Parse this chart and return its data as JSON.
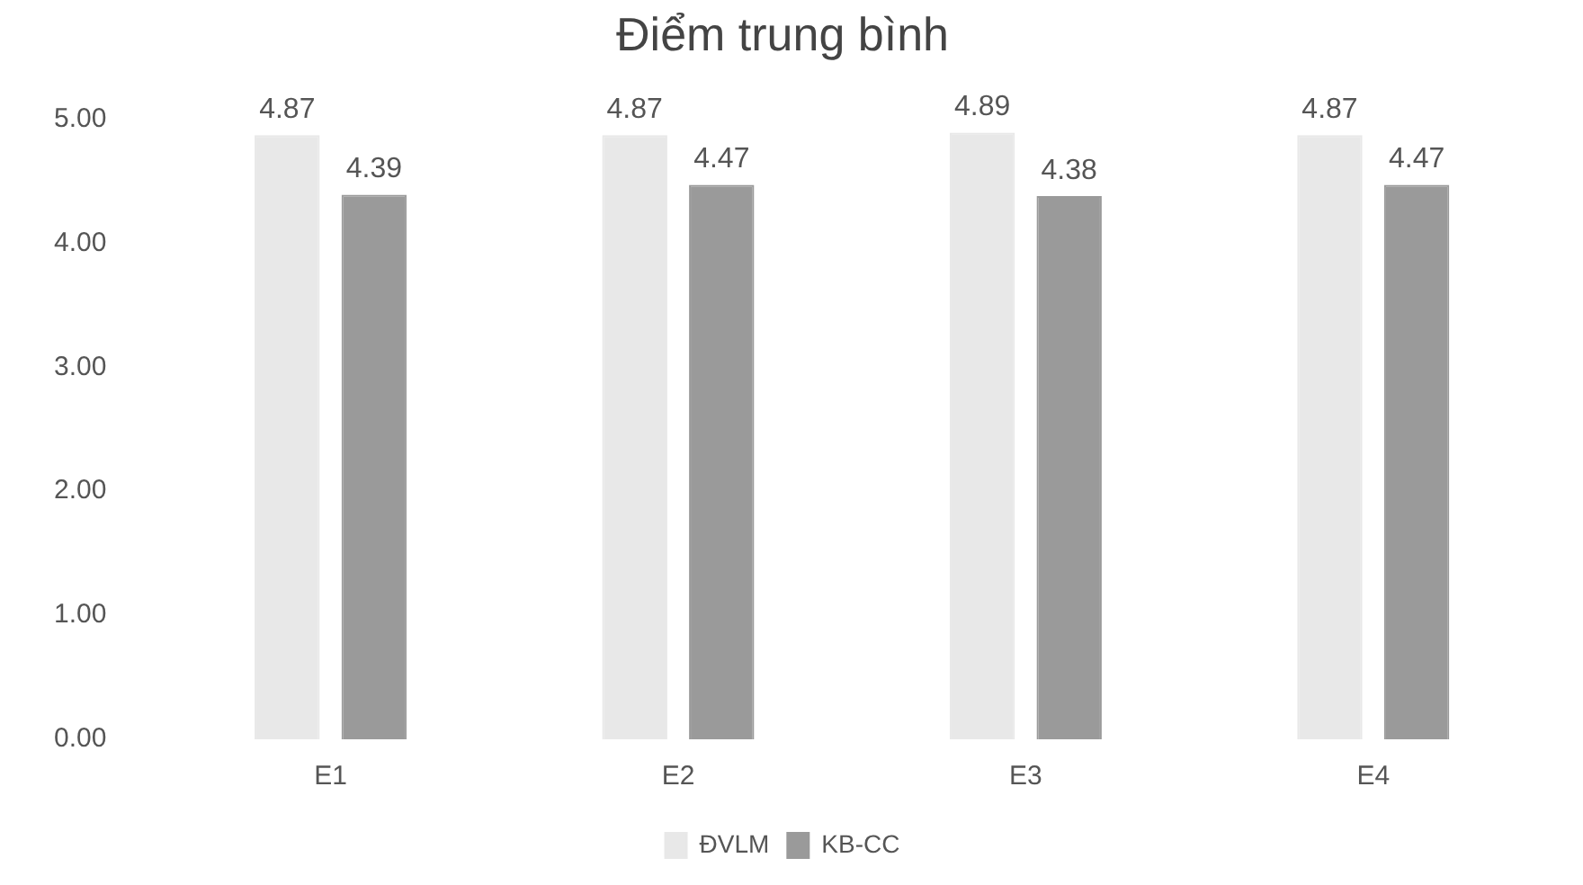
{
  "chart_data": {
    "type": "bar",
    "title": "Điểm trung bình",
    "categories": [
      "E1",
      "E2",
      "E3",
      "E4"
    ],
    "series": [
      {
        "name": "ĐVLM",
        "color": "#e8e8e8",
        "values": [
          4.87,
          4.87,
          4.89,
          4.87
        ]
      },
      {
        "name": "KB-CC",
        "color": "#9a9a9a",
        "values": [
          4.39,
          4.47,
          4.38,
          4.47
        ]
      }
    ],
    "ylim": [
      0,
      5
    ],
    "yticks": [
      {
        "value": 0,
        "label": "0.00"
      },
      {
        "value": 1,
        "label": "1.00"
      },
      {
        "value": 2,
        "label": "2.00"
      },
      {
        "value": 3,
        "label": "3.00"
      },
      {
        "value": 4,
        "label": "4.00"
      },
      {
        "value": 5,
        "label": "5.00"
      }
    ],
    "grid": false,
    "legend": "bottom",
    "data_labels": true
  }
}
